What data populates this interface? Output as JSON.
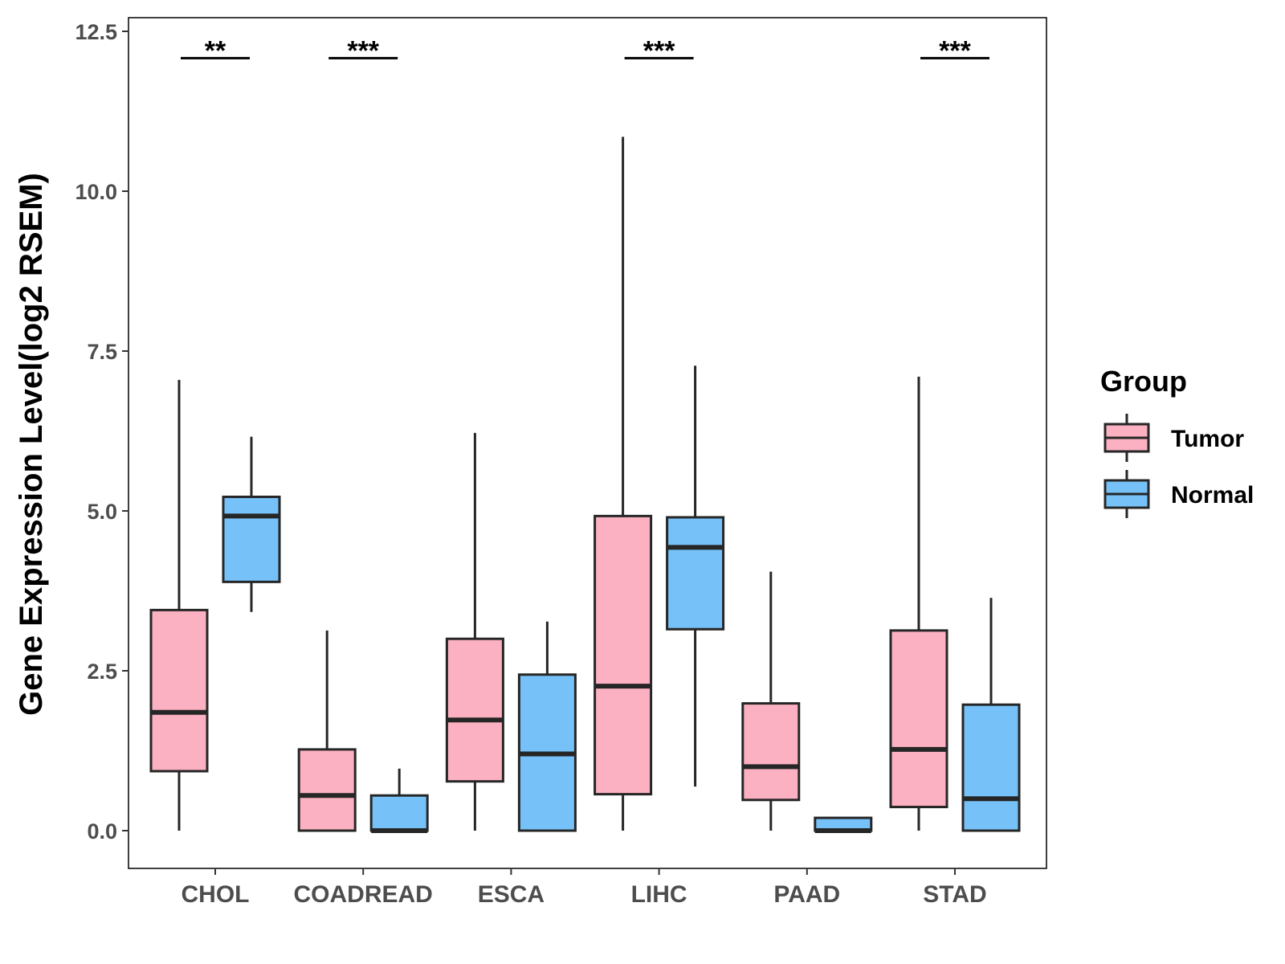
{
  "chart_data": {
    "type": "boxplot",
    "title": "",
    "xlabel": "",
    "ylabel": "Gene Expression Level(log2 RSEM)",
    "ylim": [
      -0.6,
      12.8
    ],
    "yticks": [
      0.0,
      2.5,
      5.0,
      7.5,
      10.0,
      12.5
    ],
    "ytick_labels": [
      "0.0",
      "2.5",
      "5.0",
      "7.5",
      "10.0",
      "12.5"
    ],
    "categories": [
      "CHOL",
      "COADREAD",
      "ESCA",
      "LIHC",
      "PAAD",
      "STAD"
    ],
    "legend": {
      "title": "Group",
      "position": "right",
      "entries": [
        {
          "name": "Tumor",
          "color": "#FBB1C1"
        },
        {
          "name": "Normal",
          "color": "#76C2F8"
        }
      ]
    },
    "series": [
      {
        "name": "Tumor",
        "color": "#FBB1C1",
        "boxes": [
          {
            "category": "CHOL",
            "whisker_low": 0.0,
            "q1": 0.93,
            "median": 1.85,
            "q3": 3.45,
            "whisker_high": 7.05
          },
          {
            "category": "COADREAD",
            "whisker_low": 0.0,
            "q1": 0.0,
            "median": 0.55,
            "q3": 1.27,
            "whisker_high": 3.13
          },
          {
            "category": "ESCA",
            "whisker_low": 0.0,
            "q1": 0.77,
            "median": 1.73,
            "q3": 3.0,
            "whisker_high": 6.22
          },
          {
            "category": "LIHC",
            "whisker_low": 0.0,
            "q1": 0.57,
            "median": 2.26,
            "q3": 4.92,
            "whisker_high": 10.85
          },
          {
            "category": "PAAD",
            "whisker_low": 0.0,
            "q1": 0.48,
            "median": 1.0,
            "q3": 1.99,
            "whisker_high": 4.05
          },
          {
            "category": "STAD",
            "whisker_low": 0.0,
            "q1": 0.37,
            "median": 1.27,
            "q3": 3.13,
            "whisker_high": 7.1
          }
        ]
      },
      {
        "name": "Normal",
        "color": "#76C2F8",
        "boxes": [
          {
            "category": "CHOL",
            "whisker_low": 3.42,
            "q1": 3.89,
            "median": 4.92,
            "q3": 5.22,
            "whisker_high": 6.16
          },
          {
            "category": "COADREAD",
            "whisker_low": 0.0,
            "q1": 0.0,
            "median": 0.0,
            "q3": 0.55,
            "whisker_high": 0.97
          },
          {
            "category": "ESCA",
            "whisker_low": 0.0,
            "q1": 0.0,
            "median": 1.2,
            "q3": 2.44,
            "whisker_high": 3.27
          },
          {
            "category": "LIHC",
            "whisker_low": 0.69,
            "q1": 3.15,
            "median": 4.43,
            "q3": 4.9,
            "whisker_high": 7.27
          },
          {
            "category": "PAAD",
            "whisker_low": 0.0,
            "q1": 0.0,
            "median": 0.0,
            "q3": 0.2,
            "whisker_high": 0.2
          },
          {
            "category": "STAD",
            "whisker_low": 0.0,
            "q1": 0.0,
            "median": 0.5,
            "q3": 1.97,
            "whisker_high": 3.64
          }
        ]
      }
    ],
    "significance": [
      {
        "category": "CHOL",
        "label": "**",
        "y": 12.08
      },
      {
        "category": "COADREAD",
        "label": "***",
        "y": 12.08
      },
      {
        "category": "LIHC",
        "label": "***",
        "y": 12.08
      },
      {
        "category": "STAD",
        "label": "***",
        "y": 12.08
      }
    ]
  }
}
